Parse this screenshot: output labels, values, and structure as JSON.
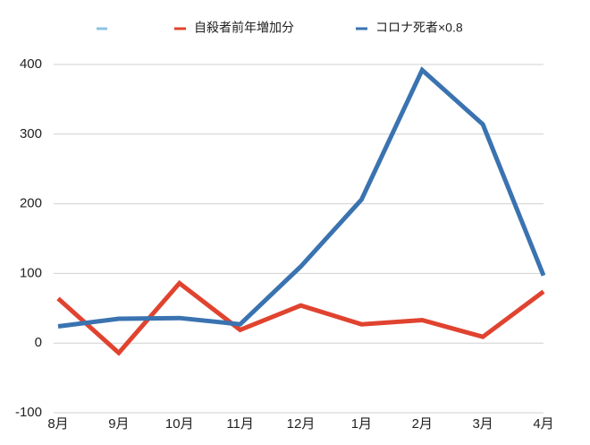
{
  "chart_data": {
    "type": "line",
    "categories": [
      "8月",
      "9月",
      "10月",
      "11月",
      "12月",
      "1月",
      "2月",
      "3月",
      "4月"
    ],
    "series": [
      {
        "name": "自殺者前年増加分",
        "color": "#e0432f",
        "values": [
          64,
          -14,
          86,
          19,
          54,
          27,
          33,
          9,
          74
        ]
      },
      {
        "name": "コロナ死者×0.8",
        "color": "#3a73b0",
        "values": [
          24,
          35,
          36,
          27,
          110,
          206,
          392,
          314,
          97
        ]
      }
    ],
    "ylim": [
      -100,
      400
    ],
    "yticks": [
      -100,
      0,
      100,
      200,
      300,
      400
    ],
    "grid": true
  }
}
